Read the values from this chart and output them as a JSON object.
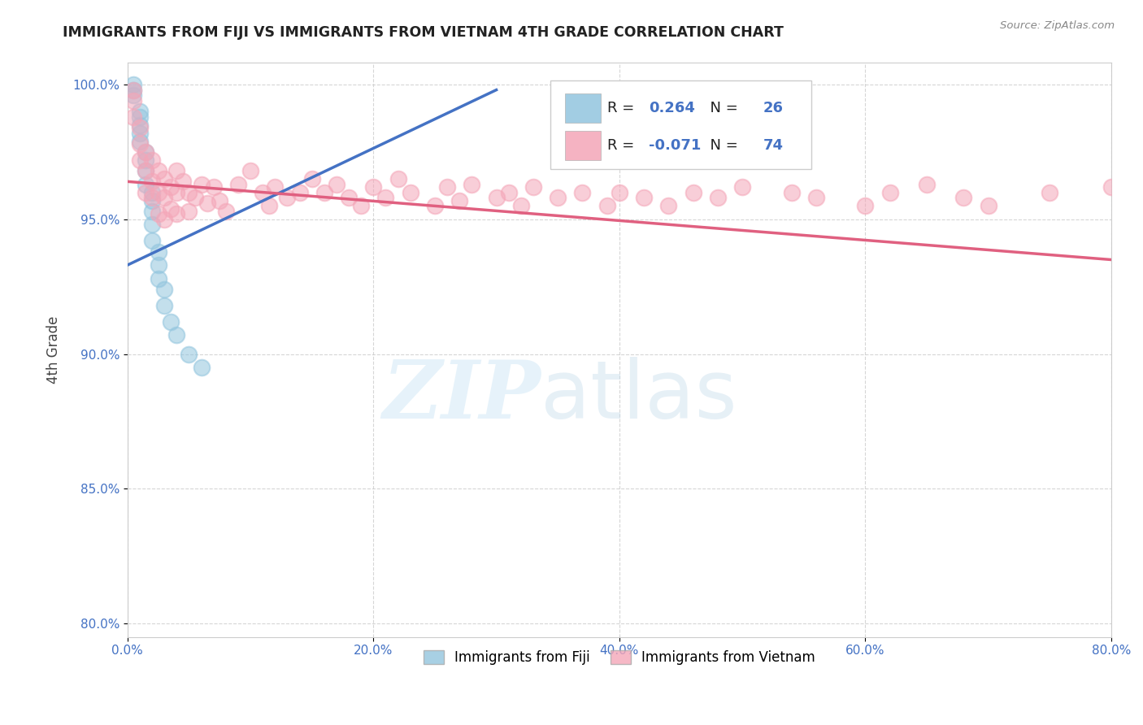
{
  "title": "IMMIGRANTS FROM FIJI VS IMMIGRANTS FROM VIETNAM 4TH GRADE CORRELATION CHART",
  "source": "Source: ZipAtlas.com",
  "ylabel": "4th Grade",
  "xlim": [
    0.0,
    0.8
  ],
  "ylim": [
    0.795,
    1.008
  ],
  "xticks": [
    0.0,
    0.2,
    0.4,
    0.6,
    0.8
  ],
  "xtick_labels": [
    "0.0%",
    "20.0%",
    "40.0%",
    "60.0%",
    "80.0%"
  ],
  "yticks": [
    0.8,
    0.85,
    0.9,
    0.95,
    1.0
  ],
  "ytick_labels": [
    "80.0%",
    "85.0%",
    "90.0%",
    "95.0%",
    "100.0%"
  ],
  "legend_fiji_R": "0.264",
  "legend_fiji_N": "26",
  "legend_viet_R": "-0.071",
  "legend_viet_N": "74",
  "fiji_color": "#92C5DE",
  "viet_color": "#F4A6B8",
  "fiji_line_color": "#4472C4",
  "viet_line_color": "#E06080",
  "watermark_ZIP": "ZIP",
  "watermark_atlas": "atlas",
  "fiji_x": [
    0.005,
    0.005,
    0.005,
    0.01,
    0.01,
    0.01,
    0.01,
    0.01,
    0.015,
    0.015,
    0.015,
    0.015,
    0.02,
    0.02,
    0.02,
    0.02,
    0.02,
    0.025,
    0.025,
    0.025,
    0.03,
    0.03,
    0.035,
    0.04,
    0.05,
    0.06
  ],
  "fiji_y": [
    1.0,
    0.998,
    0.996,
    0.99,
    0.988,
    0.985,
    0.982,
    0.979,
    0.975,
    0.972,
    0.968,
    0.963,
    0.96,
    0.957,
    0.953,
    0.948,
    0.942,
    0.938,
    0.933,
    0.928,
    0.924,
    0.918,
    0.912,
    0.907,
    0.9,
    0.895
  ],
  "viet_x": [
    0.005,
    0.005,
    0.005,
    0.01,
    0.01,
    0.01,
    0.015,
    0.015,
    0.015,
    0.02,
    0.02,
    0.02,
    0.025,
    0.025,
    0.025,
    0.03,
    0.03,
    0.03,
    0.035,
    0.035,
    0.04,
    0.04,
    0.04,
    0.045,
    0.05,
    0.05,
    0.055,
    0.06,
    0.065,
    0.07,
    0.075,
    0.08,
    0.09,
    0.1,
    0.11,
    0.115,
    0.12,
    0.13,
    0.14,
    0.15,
    0.16,
    0.17,
    0.18,
    0.19,
    0.2,
    0.21,
    0.22,
    0.23,
    0.25,
    0.26,
    0.27,
    0.28,
    0.3,
    0.31,
    0.32,
    0.33,
    0.35,
    0.37,
    0.39,
    0.4,
    0.42,
    0.44,
    0.46,
    0.48,
    0.5,
    0.54,
    0.56,
    0.6,
    0.62,
    0.65,
    0.68,
    0.7,
    0.75,
    0.8
  ],
  "viet_y": [
    0.998,
    0.994,
    0.988,
    0.984,
    0.978,
    0.972,
    0.975,
    0.968,
    0.96,
    0.972,
    0.964,
    0.958,
    0.968,
    0.96,
    0.952,
    0.965,
    0.958,
    0.95,
    0.962,
    0.954,
    0.968,
    0.96,
    0.952,
    0.964,
    0.96,
    0.953,
    0.958,
    0.963,
    0.956,
    0.962,
    0.957,
    0.953,
    0.963,
    0.968,
    0.96,
    0.955,
    0.962,
    0.958,
    0.96,
    0.965,
    0.96,
    0.963,
    0.958,
    0.955,
    0.962,
    0.958,
    0.965,
    0.96,
    0.955,
    0.962,
    0.957,
    0.963,
    0.958,
    0.96,
    0.955,
    0.962,
    0.958,
    0.96,
    0.955,
    0.96,
    0.958,
    0.955,
    0.96,
    0.958,
    0.962,
    0.96,
    0.958,
    0.955,
    0.96,
    0.963,
    0.958,
    0.955,
    0.96,
    0.962
  ],
  "fiji_trend_x": [
    0.0,
    0.3
  ],
  "fiji_trend_y": [
    0.933,
    0.998
  ],
  "viet_trend_x": [
    0.0,
    0.8
  ],
  "viet_trend_y": [
    0.964,
    0.935
  ]
}
